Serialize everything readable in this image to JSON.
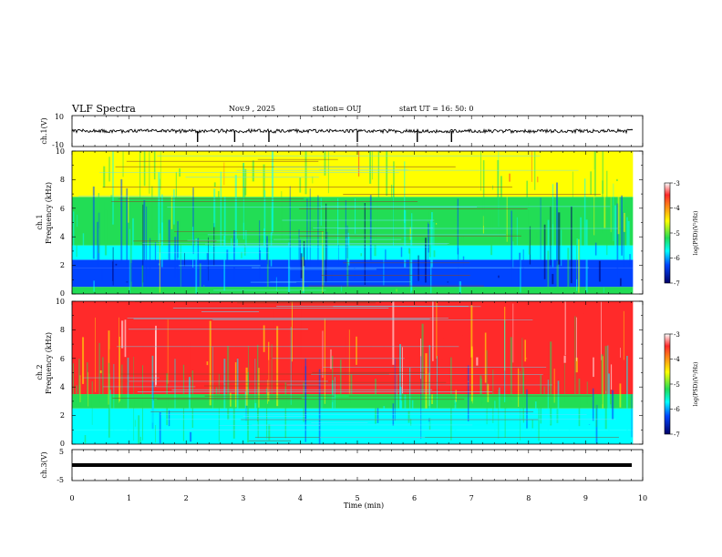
{
  "header": {
    "title": "VLF Spectra",
    "date": "Nov.9  , 2025",
    "station": "station= OUJ",
    "start": "start  UT =   16: 50: 0"
  },
  "xaxis": {
    "label": "Time  (min)",
    "ticks": [
      "0",
      "1",
      "2",
      "3",
      "4",
      "5",
      "6",
      "7",
      "8",
      "9",
      "10"
    ]
  },
  "panels": {
    "ch1": {
      "ylabel": "ch.1(V)",
      "ticks": [
        "10",
        "-10"
      ]
    },
    "spec1": {
      "ylabel_line1": "ch.1",
      "ylabel_line2": "Frequency (kHz)",
      "ticks": [
        "0",
        "2",
        "4",
        "6",
        "8",
        "10"
      ]
    },
    "spec2": {
      "ylabel_line1": "ch.2",
      "ylabel_line2": "Frequency (kHz)",
      "ticks": [
        "0",
        "2",
        "4",
        "6",
        "8",
        "10"
      ]
    },
    "ch3": {
      "ylabel": "ch.3(V)",
      "ticks": [
        "5",
        "-5"
      ]
    }
  },
  "colorbar": {
    "label": "log(PSD)(V²/Hz)",
    "ticks": [
      "-3",
      "-4",
      "-5",
      "-6",
      "-7"
    ]
  },
  "chart_data": {
    "type": "heatmap",
    "title": "VLF Spectra",
    "xlabel": "Time  (min)",
    "xlim": [
      0,
      10
    ],
    "data_end_min": 9.83,
    "colormap": [
      "#ffffff",
      "#ff2a2a",
      "#ffff00",
      "#22dd55",
      "#00ffff",
      "#0044ff",
      "#000066"
    ],
    "clim": [
      -7,
      -3
    ],
    "panels": [
      {
        "name": "ch.1 waveform",
        "ylabel": "ch.1(V)",
        "ylim": [
          -10,
          10
        ],
        "baseline": 0,
        "spikes_min": [
          2.2,
          2.85,
          3.45,
          5.0,
          6.05,
          6.65
        ]
      },
      {
        "name": "ch.1 spectrogram",
        "ylabel": "Frequency (kHz)",
        "ylim": [
          0,
          10
        ],
        "bands": [
          {
            "from_khz": 0,
            "to_khz": 0.5,
            "log_psd": -5.2
          },
          {
            "from_khz": 0.5,
            "to_khz": 1.8,
            "log_psd": -6.6
          },
          {
            "from_khz": 1.8,
            "to_khz": 2.4,
            "log_psd": -6.2
          },
          {
            "from_khz": 2.4,
            "to_khz": 3.4,
            "log_psd": -5.6
          },
          {
            "from_khz": 3.4,
            "to_khz": 6.8,
            "log_psd": -5.0
          },
          {
            "from_khz": 6.8,
            "to_khz": 10,
            "log_psd": -4.6
          }
        ]
      },
      {
        "name": "ch.2 spectrogram",
        "ylabel": "Frequency (kHz)",
        "ylim": [
          0,
          10
        ],
        "bands": [
          {
            "from_khz": 0,
            "to_khz": 1.0,
            "log_psd": -5.4
          },
          {
            "from_khz": 1.0,
            "to_khz": 2.5,
            "log_psd": -5.7
          },
          {
            "from_khz": 2.5,
            "to_khz": 3.5,
            "log_psd": -4.7
          },
          {
            "from_khz": 3.5,
            "to_khz": 10,
            "log_psd": -3.6
          }
        ]
      },
      {
        "name": "ch.3 waveform",
        "ylabel": "ch.3(V)",
        "ylim": [
          -5,
          5
        ],
        "baseline": 0
      }
    ]
  }
}
